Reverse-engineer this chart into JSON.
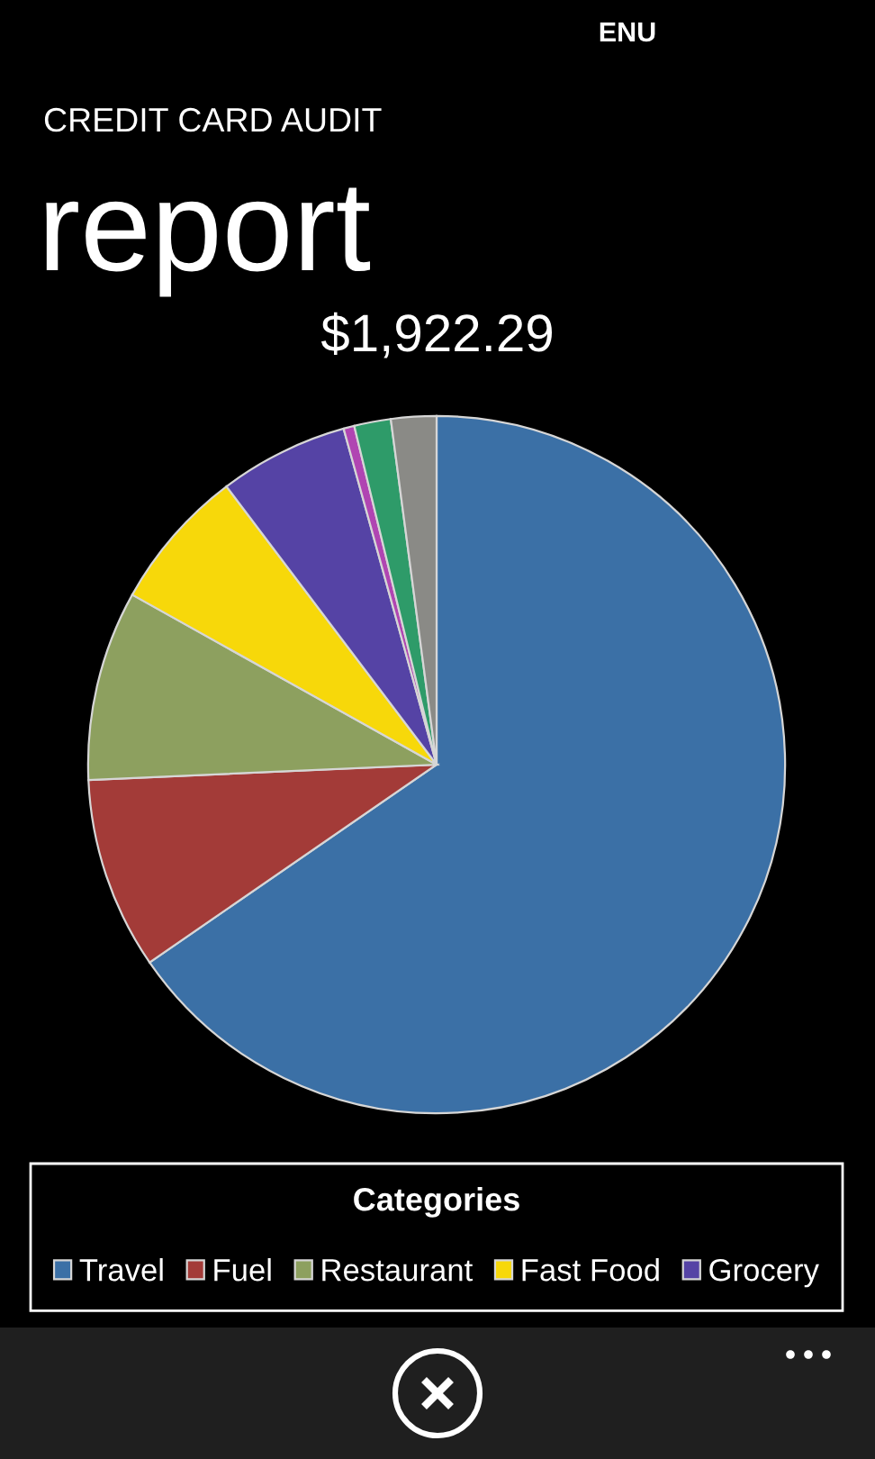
{
  "chart_data": {
    "type": "pie",
    "title": "CREDIT CARD AUDIT",
    "subtitle": "report",
    "annotations": [
      "ENU",
      "$1,922.29"
    ],
    "categories": [
      "Travel",
      "Fuel",
      "Restaurant",
      "Fast Food",
      "Grocery",
      null,
      null,
      null
    ],
    "values": [
      65.4,
      8.9,
      8.8,
      6.6,
      6.0,
      0.5,
      1.7,
      2.1
    ],
    "colors": [
      "#3b70a6",
      "#a33b38",
      "#8da05f",
      "#f7d80a",
      "#5543a5",
      "#b045b2",
      "#2e9b69",
      "#8a8a86"
    ],
    "legend": "bottom",
    "legend_title": "Categories"
  }
}
